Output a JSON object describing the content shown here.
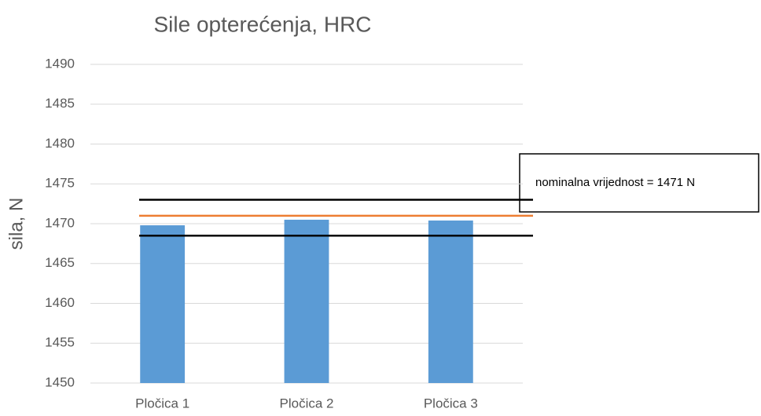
{
  "chart_data": {
    "type": "bar",
    "title": "Sile opterećenja, HRC",
    "y_label": "sila, N",
    "categories": [
      "Pločica 1",
      "Pločica 2",
      "Pločica 3"
    ],
    "values": [
      1469.8,
      1470.5,
      1470.4
    ],
    "color": "#5b9bd5",
    "ylim": [
      1450,
      1490
    ],
    "yticks": [
      1450,
      1455,
      1460,
      1465,
      1470,
      1475,
      1480,
      1485,
      1490
    ],
    "grid": true,
    "reference_lines": [
      {
        "value": 1473,
        "color": "#000000"
      },
      {
        "value": 1471,
        "color": "#ed7d31"
      },
      {
        "value": 1468.5,
        "color": "#000000"
      }
    ],
    "annotation": "nominalna vrijednost = 1471 N"
  }
}
